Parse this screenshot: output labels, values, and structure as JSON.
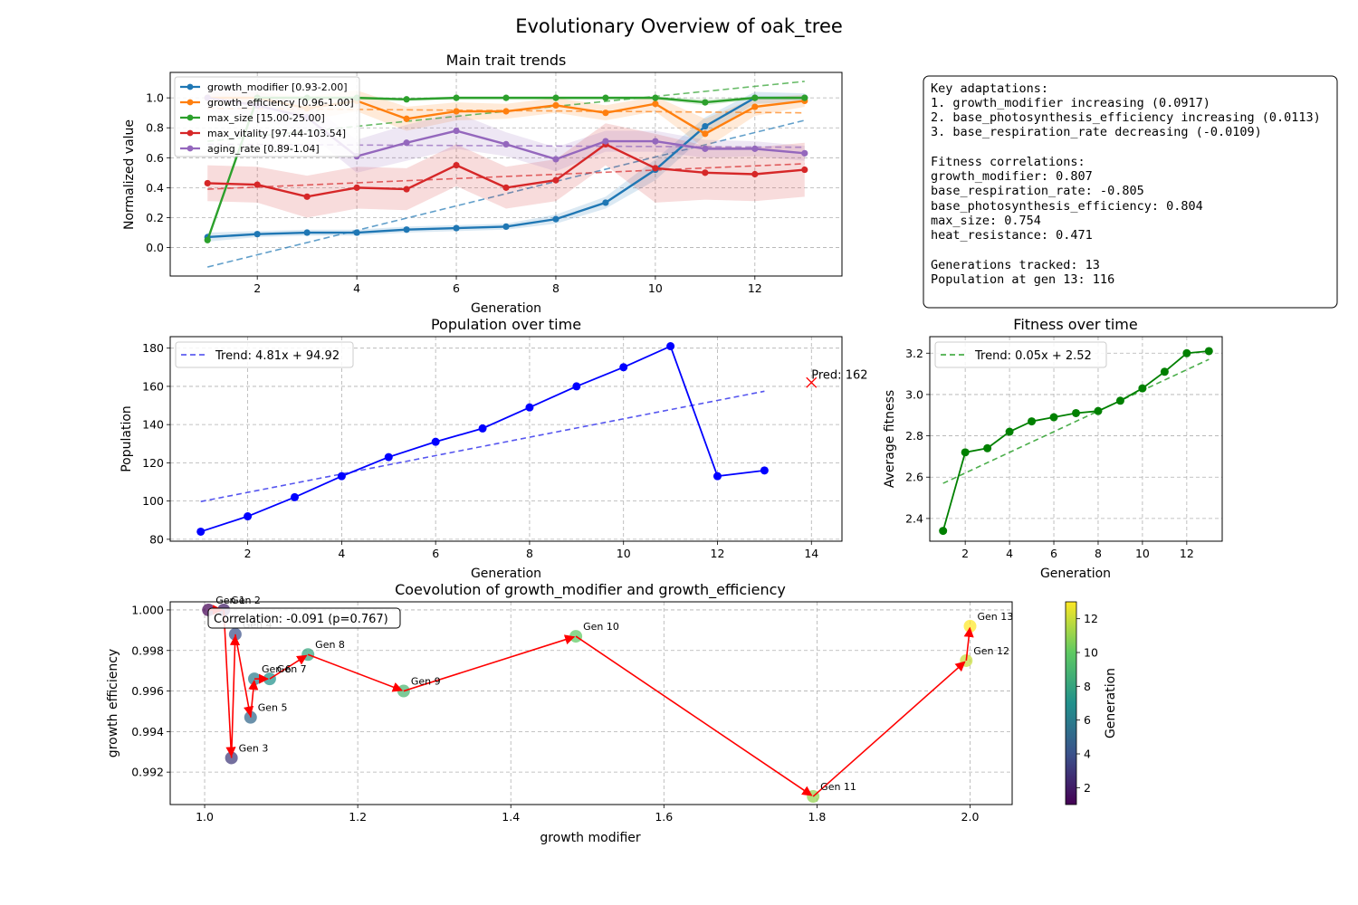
{
  "figure_title": "Evolutionary Overview of oak_tree",
  "info_box": {
    "lines": [
      "Key adaptations:",
      "1. growth_modifier increasing (0.0917)",
      "2. base_photosynthesis_efficiency increasing (0.0113)",
      "3. base_respiration_rate decreasing (-0.0109)",
      "",
      "Fitness correlations:",
      "growth_modifier: 0.807",
      "base_respiration_rate: -0.805",
      "base_photosynthesis_efficiency: 0.804",
      "max_size: 0.754",
      "heat_resistance: 0.471",
      "",
      "Generations tracked: 13",
      "Population at gen 13: 116"
    ]
  },
  "chart_data": [
    {
      "id": "traits",
      "type": "line",
      "title": "Main trait trends",
      "xlabel": "Generation",
      "ylabel": "Normalized value",
      "xlim": [
        0.25,
        13.75
      ],
      "ylim": [
        -0.19,
        1.17
      ],
      "xticks": [
        2,
        4,
        6,
        8,
        10,
        12
      ],
      "yticks": [
        0.0,
        0.2,
        0.4,
        0.6,
        0.8,
        1.0
      ],
      "ytick_labels": [
        "0.0",
        "0.2",
        "0.4",
        "0.6",
        "0.8",
        "1.0"
      ],
      "grid": true,
      "legend": "top-left",
      "x": [
        1,
        2,
        3,
        4,
        5,
        6,
        7,
        8,
        9,
        10,
        11,
        12,
        13
      ],
      "series": [
        {
          "name": "growth_modifier [0.93-2.00]",
          "color": "#1f77b4",
          "values": [
            0.07,
            0.09,
            0.1,
            0.1,
            0.12,
            0.13,
            0.14,
            0.19,
            0.3,
            0.52,
            0.81,
            1.0,
            1.0
          ],
          "band": [
            0.03,
            0.02,
            0.02,
            0.02,
            0.02,
            0.02,
            0.02,
            0.03,
            0.04,
            0.07,
            0.06,
            0.04,
            0.03
          ],
          "trend": [
            -0.13,
            0.85
          ]
        },
        {
          "name": "growth_efficiency [0.96-1.00]",
          "color": "#ff7f0e",
          "values": [
            1.0,
            1.0,
            0.93,
            0.98,
            0.86,
            0.91,
            0.91,
            0.95,
            0.9,
            0.96,
            0.76,
            0.94,
            0.98
          ],
          "band": [
            0.04,
            0.04,
            0.08,
            0.07,
            0.08,
            0.06,
            0.05,
            0.05,
            0.05,
            0.05,
            0.1,
            0.06,
            0.04
          ],
          "trend": [
            0.93,
            0.9
          ]
        },
        {
          "name": "max_size [15.00-25.00]",
          "color": "#2ca02c",
          "values": [
            0.05,
            1.0,
            1.0,
            1.0,
            0.99,
            1.0,
            1.0,
            1.0,
            1.0,
            1.0,
            0.97,
            1.0,
            1.0
          ],
          "band": [
            0.01,
            0.01,
            0.01,
            0.01,
            0.01,
            0.01,
            0.01,
            0.01,
            0.01,
            0.01,
            0.02,
            0.01,
            0.01
          ],
          "trend": [
            0.71,
            1.11
          ]
        },
        {
          "name": "max_vitality [97.44-103.54]",
          "color": "#d62728",
          "values": [
            0.43,
            0.42,
            0.34,
            0.4,
            0.39,
            0.55,
            0.4,
            0.45,
            0.69,
            0.53,
            0.5,
            0.49,
            0.52
          ],
          "band": [
            0.12,
            0.12,
            0.14,
            0.14,
            0.14,
            0.14,
            0.14,
            0.14,
            0.14,
            0.23,
            0.18,
            0.18,
            0.18
          ],
          "trend": [
            0.39,
            0.56
          ]
        },
        {
          "name": "aging_rate [0.89-1.04]",
          "color": "#9467bd",
          "values": [
            1.0,
            0.95,
            0.87,
            0.61,
            0.7,
            0.78,
            0.69,
            0.59,
            0.71,
            0.71,
            0.66,
            0.66,
            0.63
          ],
          "band": [
            0.09,
            0.09,
            0.1,
            0.11,
            0.12,
            0.12,
            0.08,
            0.08,
            0.07,
            0.07,
            0.06,
            0.05,
            0.05
          ],
          "trend": [
            0.69,
            0.67
          ]
        }
      ]
    },
    {
      "id": "population",
      "type": "line",
      "title": "Population over time",
      "xlabel": "Generation",
      "ylabel": "Population",
      "xlim": [
        0.35,
        14.65
      ],
      "ylim": [
        79,
        186
      ],
      "xticks": [
        2,
        4,
        6,
        8,
        10,
        12,
        14
      ],
      "yticks": [
        80,
        100,
        120,
        140,
        160,
        180
      ],
      "grid": true,
      "legend": "top-left",
      "x": [
        1,
        2,
        3,
        4,
        5,
        6,
        7,
        8,
        9,
        10,
        11,
        12,
        13
      ],
      "values": [
        84,
        92,
        102,
        113,
        123,
        131,
        138,
        149,
        160,
        170,
        181,
        113,
        116
      ],
      "color": "#0000ff",
      "trend": {
        "name": "Trend: 4.81x + 94.92",
        "slope": 4.81,
        "intercept": 94.92,
        "color": "#4444ee"
      },
      "prediction": {
        "x": 14,
        "y": 162,
        "label": "Pred: 162",
        "color": "#ff0000"
      }
    },
    {
      "id": "fitness",
      "type": "line",
      "title": "Fitness over time",
      "xlabel": "Generation",
      "ylabel": "Average fitness",
      "xlim": [
        0.4,
        13.6
      ],
      "ylim": [
        2.29,
        3.28
      ],
      "xticks": [
        2,
        4,
        6,
        8,
        10,
        12
      ],
      "yticks": [
        2.4,
        2.6,
        2.8,
        3.0,
        3.2
      ],
      "ytick_labels": [
        "2.4",
        "2.6",
        "2.8",
        "3.0",
        "3.2"
      ],
      "grid": true,
      "legend": "top-left",
      "x": [
        1,
        2,
        3,
        4,
        5,
        6,
        7,
        8,
        9,
        10,
        11,
        12,
        13
      ],
      "values": [
        2.34,
        2.72,
        2.74,
        2.82,
        2.87,
        2.89,
        2.91,
        2.92,
        2.97,
        3.03,
        3.11,
        3.2,
        3.21
      ],
      "color": "#008000",
      "trend": {
        "name": "Trend: 0.05x + 2.52",
        "slope": 0.05,
        "intercept": 2.52,
        "color": "#2ca02c"
      }
    },
    {
      "id": "coevolution",
      "type": "scatter",
      "title": "Coevolution of growth_modifier and growth_efficiency",
      "xlabel": "growth modifier",
      "ylabel": "growth efficiency",
      "xlim": [
        0.955,
        2.055
      ],
      "ylim": [
        0.9904,
        1.0004
      ],
      "xticks": [
        1.0,
        1.2,
        1.4,
        1.6,
        1.8,
        2.0
      ],
      "xtick_labels": [
        "1.0",
        "1.2",
        "1.4",
        "1.6",
        "1.8",
        "2.0"
      ],
      "yticks": [
        0.992,
        0.994,
        0.996,
        0.998,
        1.0
      ],
      "ytick_labels": [
        "0.992",
        "0.994",
        "0.996",
        "0.998",
        "1.000"
      ],
      "grid": true,
      "annotation": "Correlation: -0.091 (p=0.767)",
      "colorbar": {
        "label": "Generation",
        "ticks": [
          2,
          4,
          6,
          8,
          10,
          12
        ],
        "range": [
          1,
          13
        ]
      },
      "points": [
        {
          "gen": 1,
          "x": 1.005,
          "y": 1.0,
          "label": "Gen 1"
        },
        {
          "gen": 2,
          "x": 1.025,
          "y": 1.0,
          "label": "Gen 2"
        },
        {
          "gen": 3,
          "x": 1.035,
          "y": 0.9927,
          "label": "Gen 3"
        },
        {
          "gen": 4,
          "x": 1.04,
          "y": 0.9988,
          "label": "Gen 4"
        },
        {
          "gen": 5,
          "x": 1.06,
          "y": 0.9947,
          "label": "Gen 5"
        },
        {
          "gen": 6,
          "x": 1.065,
          "y": 0.9966,
          "label": "Gen 6"
        },
        {
          "gen": 7,
          "x": 1.085,
          "y": 0.9966,
          "label": "Gen 7"
        },
        {
          "gen": 8,
          "x": 1.135,
          "y": 0.9978,
          "label": "Gen 8"
        },
        {
          "gen": 9,
          "x": 1.26,
          "y": 0.996,
          "label": "Gen 9"
        },
        {
          "gen": 10,
          "x": 1.485,
          "y": 0.9987,
          "label": "Gen 10"
        },
        {
          "gen": 11,
          "x": 1.795,
          "y": 0.9908,
          "label": "Gen 11"
        },
        {
          "gen": 12,
          "x": 1.995,
          "y": 0.9975,
          "label": "Gen 12"
        },
        {
          "gen": 13,
          "x": 2.0,
          "y": 0.9992,
          "label": "Gen 13"
        }
      ]
    }
  ]
}
